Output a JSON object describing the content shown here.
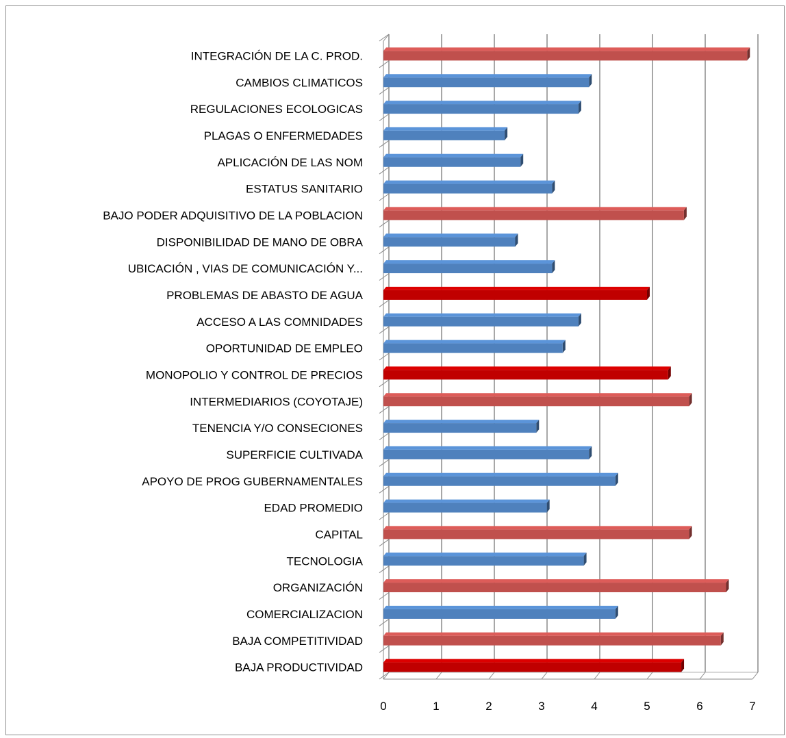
{
  "chart_data": {
    "type": "bar",
    "orientation": "horizontal",
    "categories": [
      "INTEGRACIÓN DE LA C. PROD.",
      "CAMBIOS CLIMATICOS",
      "REGULACIONES ECOLOGICAS",
      "PLAGAS O ENFERMEDADES",
      "APLICACIÓN DE LAS NOM",
      "ESTATUS SANITARIO",
      "BAJO PODER ADQUISITIVO DE LA POBLACION",
      "DISPONIBILIDAD DE MANO DE OBRA",
      "UBICACIÓN , VIAS DE COMUNICACIÓN Y...",
      "PROBLEMAS DE ABASTO DE AGUA",
      "ACCESO A LAS COMNIDADES",
      "OPORTUNIDAD DE EMPLEO",
      "MONOPOLIO Y CONTROL DE PRECIOS",
      "INTERMEDIARIOS (COYOTAJE)",
      "TENENCIA Y/O CONSECIONES",
      "SUPERFICIE CULTIVADA",
      "APOYO DE PROG GUBERNAMENTALES",
      "EDAD PROMEDIO",
      "CAPITAL",
      "TECNOLOGIA",
      "ORGANIZACIÓN",
      "COMERCIALIZACION",
      "BAJA COMPETITIVIDAD",
      "BAJA PRODUCTIVIDAD"
    ],
    "values": [
      6.9,
      3.9,
      3.7,
      2.3,
      2.6,
      3.2,
      5.7,
      2.5,
      3.2,
      5.0,
      3.7,
      3.4,
      5.4,
      5.8,
      2.9,
      3.9,
      4.4,
      3.1,
      5.8,
      3.8,
      6.5,
      4.4,
      6.4,
      5.65
    ],
    "bar_colors": [
      "#c0504d",
      "#4f81bd",
      "#4f81bd",
      "#4f81bd",
      "#4f81bd",
      "#4f81bd",
      "#c0504d",
      "#4f81bd",
      "#4f81bd",
      "#c00000",
      "#4f81bd",
      "#4f81bd",
      "#c00000",
      "#c0504d",
      "#4f81bd",
      "#4f81bd",
      "#4f81bd",
      "#4f81bd",
      "#c0504d",
      "#4f81bd",
      "#c0504d",
      "#4f81bd",
      "#c0504d",
      "#c00000"
    ],
    "xlim": [
      0,
      7
    ],
    "xticks": [
      "0",
      "1",
      "2",
      "3",
      "4",
      "5",
      "6",
      "7"
    ],
    "grid": true,
    "style": "3d",
    "title": "",
    "xlabel": "",
    "ylabel": "",
    "legend": false
  }
}
